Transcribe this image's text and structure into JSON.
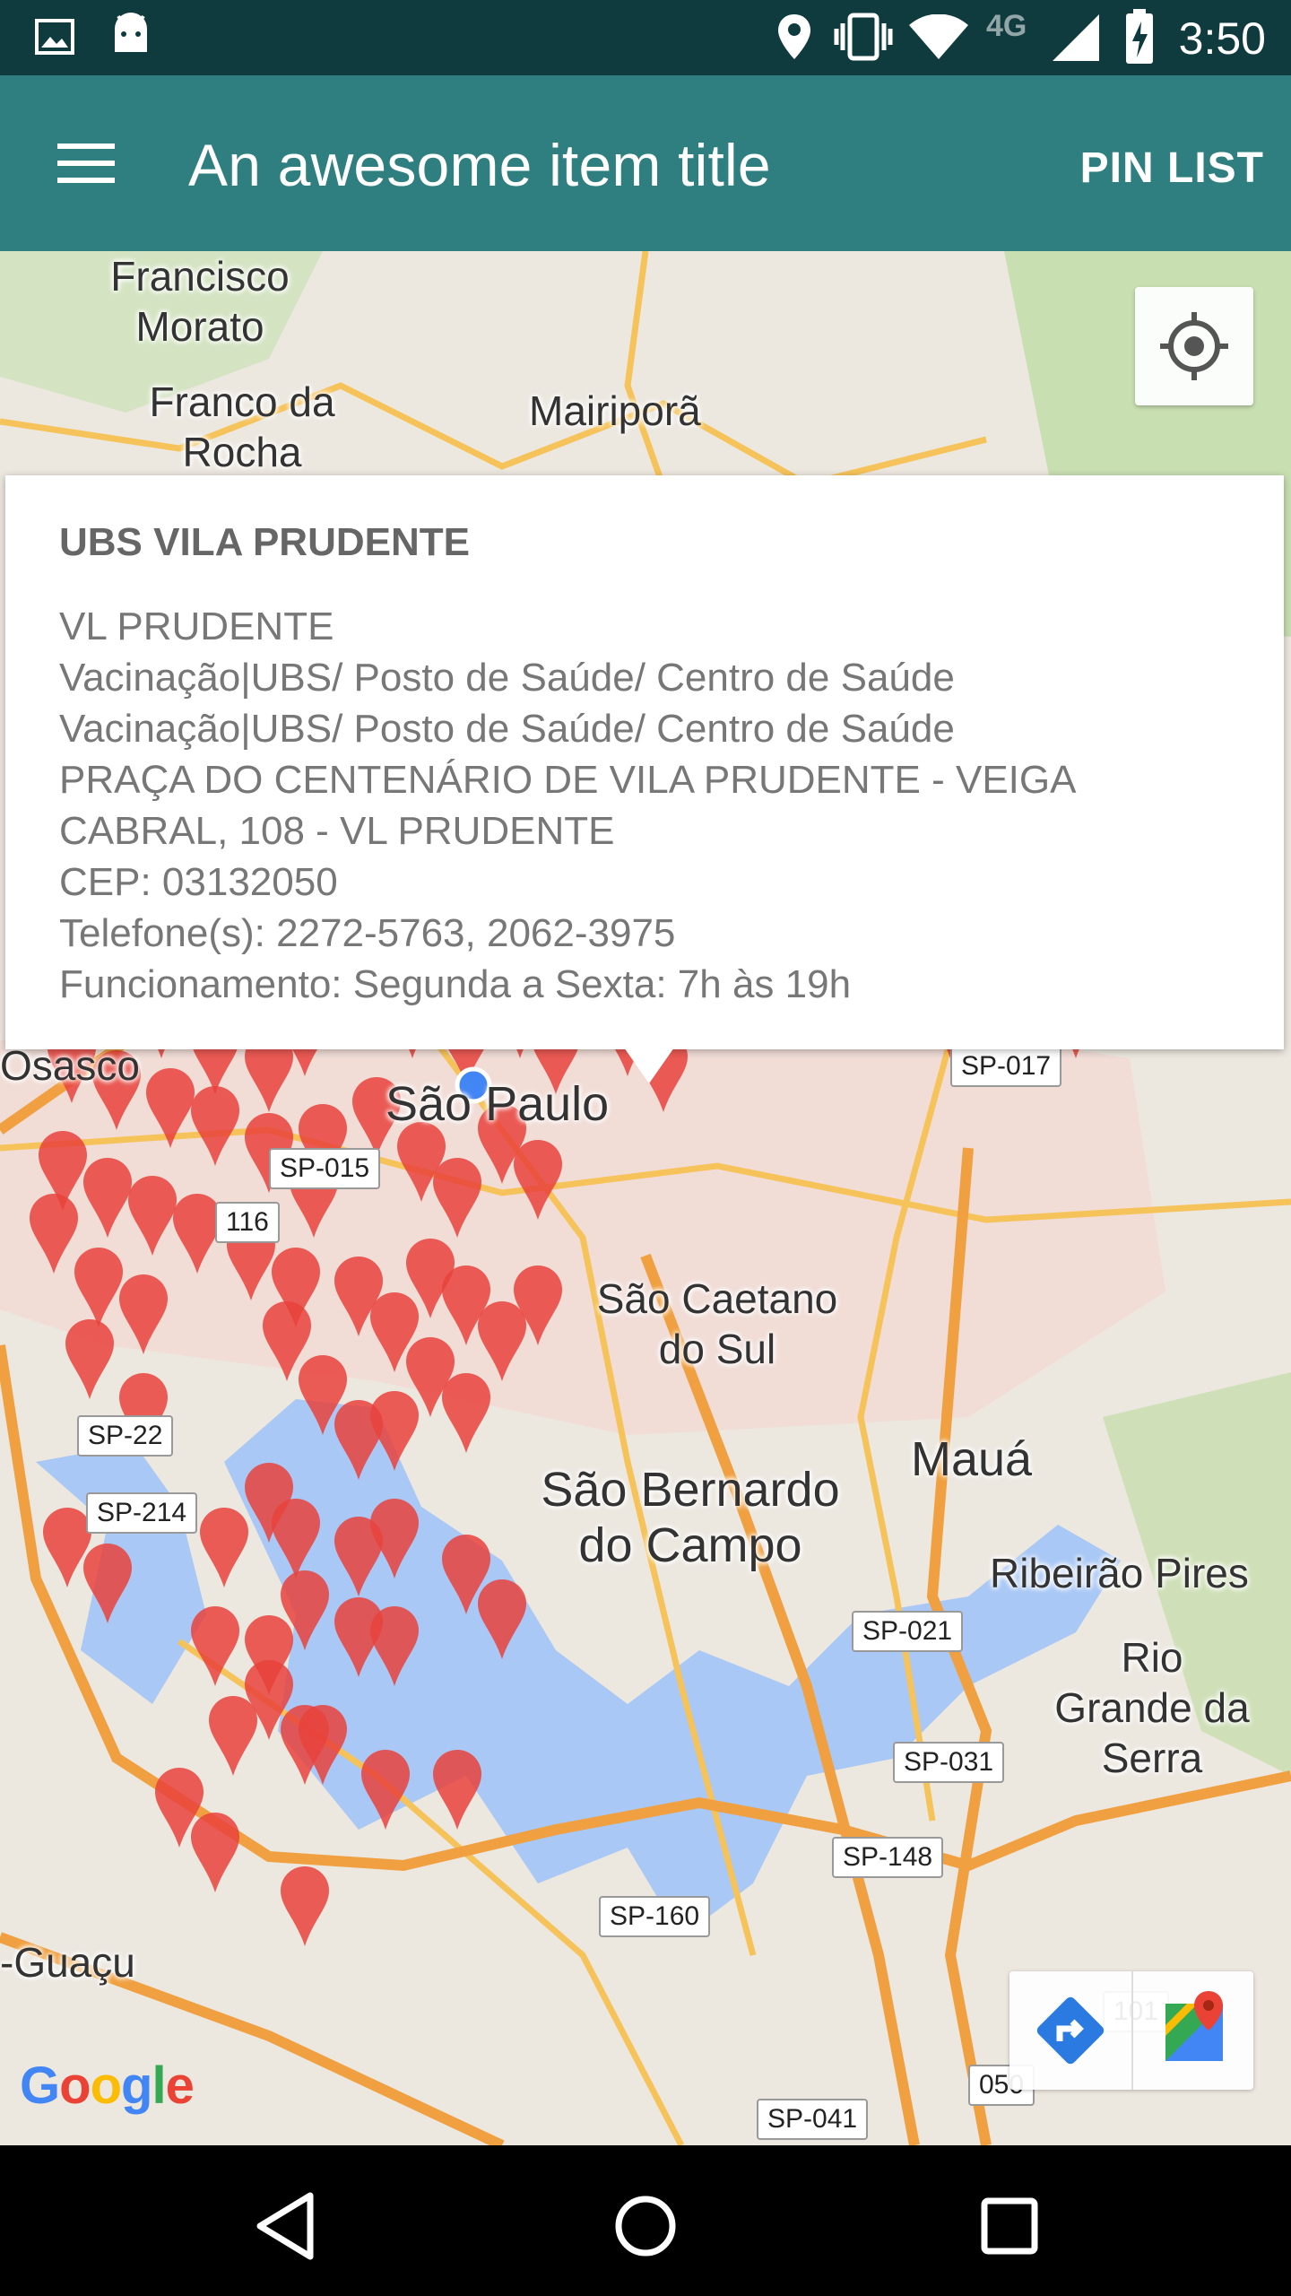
{
  "status_bar": {
    "time": "3:50",
    "network": "4G",
    "icons": [
      "image-icon",
      "android-icon",
      "location-icon",
      "vibrate-icon",
      "wifi-icon",
      "signal-icon",
      "battery-charging-icon"
    ]
  },
  "app_bar": {
    "title": "An awesome item title",
    "action_label": "PIN LIST",
    "menu_icon": "menu-icon"
  },
  "colors": {
    "app_bar": "#2f7f80",
    "status_bar": "#0f3b3f",
    "pin": "#e9423c",
    "water": "#a9c8f5",
    "highway": "#f0a040"
  },
  "map": {
    "cities": [
      "Francisco Morato",
      "Franco da Rocha",
      "Mairiporã",
      "Osasco",
      "São Paulo",
      "São Caetano do Sul",
      "São Bernardo do Campo",
      "Mauá",
      "Ribeirão Pires",
      "Rio Grande da Serra",
      "-Guaçu"
    ],
    "highway_shields": [
      "SP-015",
      "116",
      "SP-22",
      "SP-214",
      "SP-021",
      "SP-031",
      "SP-148",
      "SP-160",
      "SP-041",
      "050",
      "101",
      "SP-017"
    ],
    "logo": "Google"
  },
  "info_window": {
    "title": "UBS VILA PRUDENTE",
    "lines": [
      "VL  PRUDENTE",
      "Vacinação|UBS/ Posto de Saúde/ Centro de Saúde",
      "Vacinação|UBS/ Posto de Saúde/ Centro de Saúde",
      "PRAÇA DO CENTENÁRIO DE VILA PRUDENTE  - VEIGA",
      "CABRAL, 108 - VL  PRUDENTE",
      "CEP: 03132050",
      "Telefone(s): 2272-5763, 2062-3975",
      "Funcionamento: Segunda a Sexta: 7h às 19h"
    ]
  },
  "nav_bar": {
    "buttons": [
      "back-icon",
      "home-icon",
      "recents-icon"
    ]
  }
}
